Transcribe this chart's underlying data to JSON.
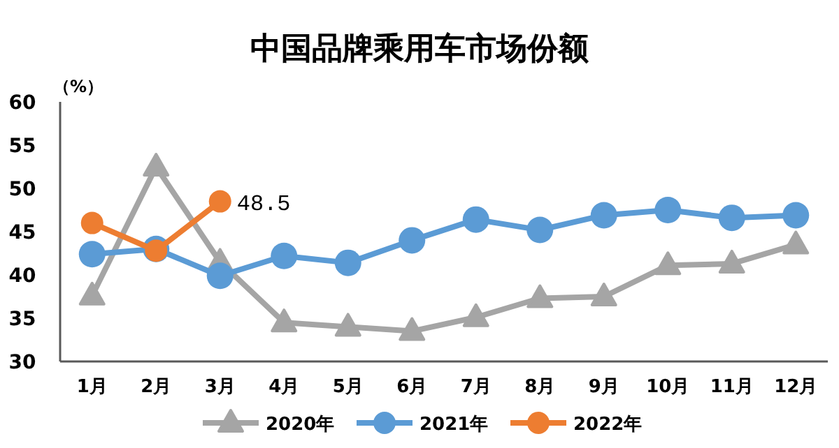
{
  "chart_data": {
    "type": "line",
    "title": "中国品牌乘用车市场份额",
    "ylabel": "（%）",
    "categories": [
      "1月",
      "2月",
      "3月",
      "4月",
      "5月",
      "6月",
      "7月",
      "8月",
      "9月",
      "10月",
      "11月",
      "12月"
    ],
    "series": [
      {
        "name": "2020年",
        "color": "#a5a5a5",
        "marker": "triangle",
        "values": [
          37.6,
          52.5,
          41.5,
          34.5,
          34.0,
          33.5,
          35.1,
          37.3,
          37.5,
          41.1,
          41.3,
          43.5
        ]
      },
      {
        "name": "2021年",
        "color": "#5b9bd5",
        "marker": "circle",
        "values": [
          42.4,
          43.0,
          39.9,
          42.2,
          41.4,
          44.0,
          46.4,
          45.2,
          46.9,
          47.5,
          46.6,
          46.9
        ]
      },
      {
        "name": "2022年",
        "color": "#ed7d31",
        "marker": "circle",
        "values": [
          46.0,
          42.8,
          48.5,
          null,
          null,
          null,
          null,
          null,
          null,
          null,
          null,
          null
        ],
        "value_labels": [
          null,
          null,
          "48.5",
          null,
          null,
          null,
          null,
          null,
          null,
          null,
          null,
          null
        ]
      }
    ],
    "ylim": [
      30,
      60
    ],
    "yticks": [
      30,
      35,
      40,
      45,
      50,
      55,
      60
    ],
    "grid": false,
    "legend": "bottom",
    "line_style": "solid"
  }
}
